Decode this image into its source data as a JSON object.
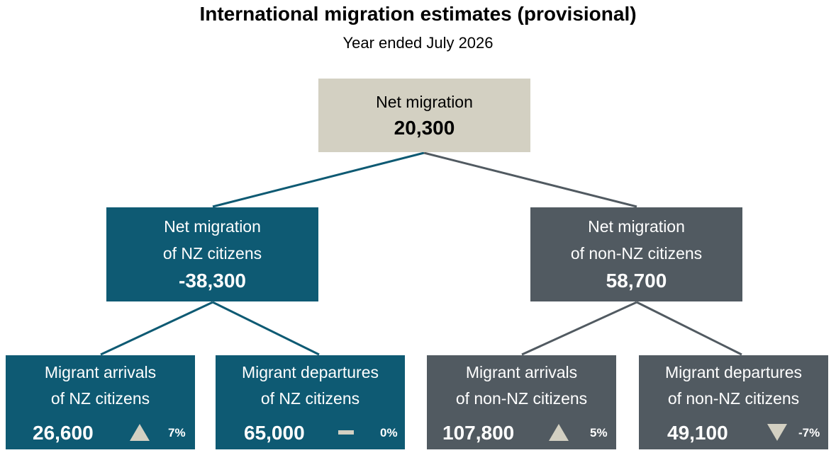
{
  "header": {
    "title": "International migration estimates (provisional)",
    "subtitle": "Year ended July 2026"
  },
  "colors": {
    "nz_citizens": "#0e5a73",
    "non_nz_citizens": "#515a61",
    "total": "#d3d0c2",
    "trend_icon": "#d3d0c2"
  },
  "root": {
    "label": "Net migration",
    "value": "20,300"
  },
  "nz": {
    "label_line1": "Net migration",
    "label_line2": "of NZ citizens",
    "value": "-38,300",
    "arrivals": {
      "label_line1": "Migrant arrivals",
      "label_line2": "of NZ citizens",
      "value": "26,600",
      "change": "7%",
      "trend": "up",
      "icon": "triangle-up-icon"
    },
    "departures": {
      "label_line1": "Migrant departures",
      "label_line2": "of NZ citizens",
      "value": "65,000",
      "change": "0%",
      "trend": "flat",
      "icon": "dash-icon"
    }
  },
  "non_nz": {
    "label_line1": "Net migration",
    "label_line2": "of non-NZ citizens",
    "value": "58,700",
    "arrivals": {
      "label_line1": "Migrant arrivals",
      "label_line2": "of non-NZ citizens",
      "value": "107,800",
      "change": "5%",
      "trend": "up",
      "icon": "triangle-up-icon"
    },
    "departures": {
      "label_line1": "Migrant departures",
      "label_line2": "of non-NZ citizens",
      "value": "49,100",
      "change": "-7%",
      "trend": "down",
      "icon": "triangle-down-icon"
    }
  }
}
